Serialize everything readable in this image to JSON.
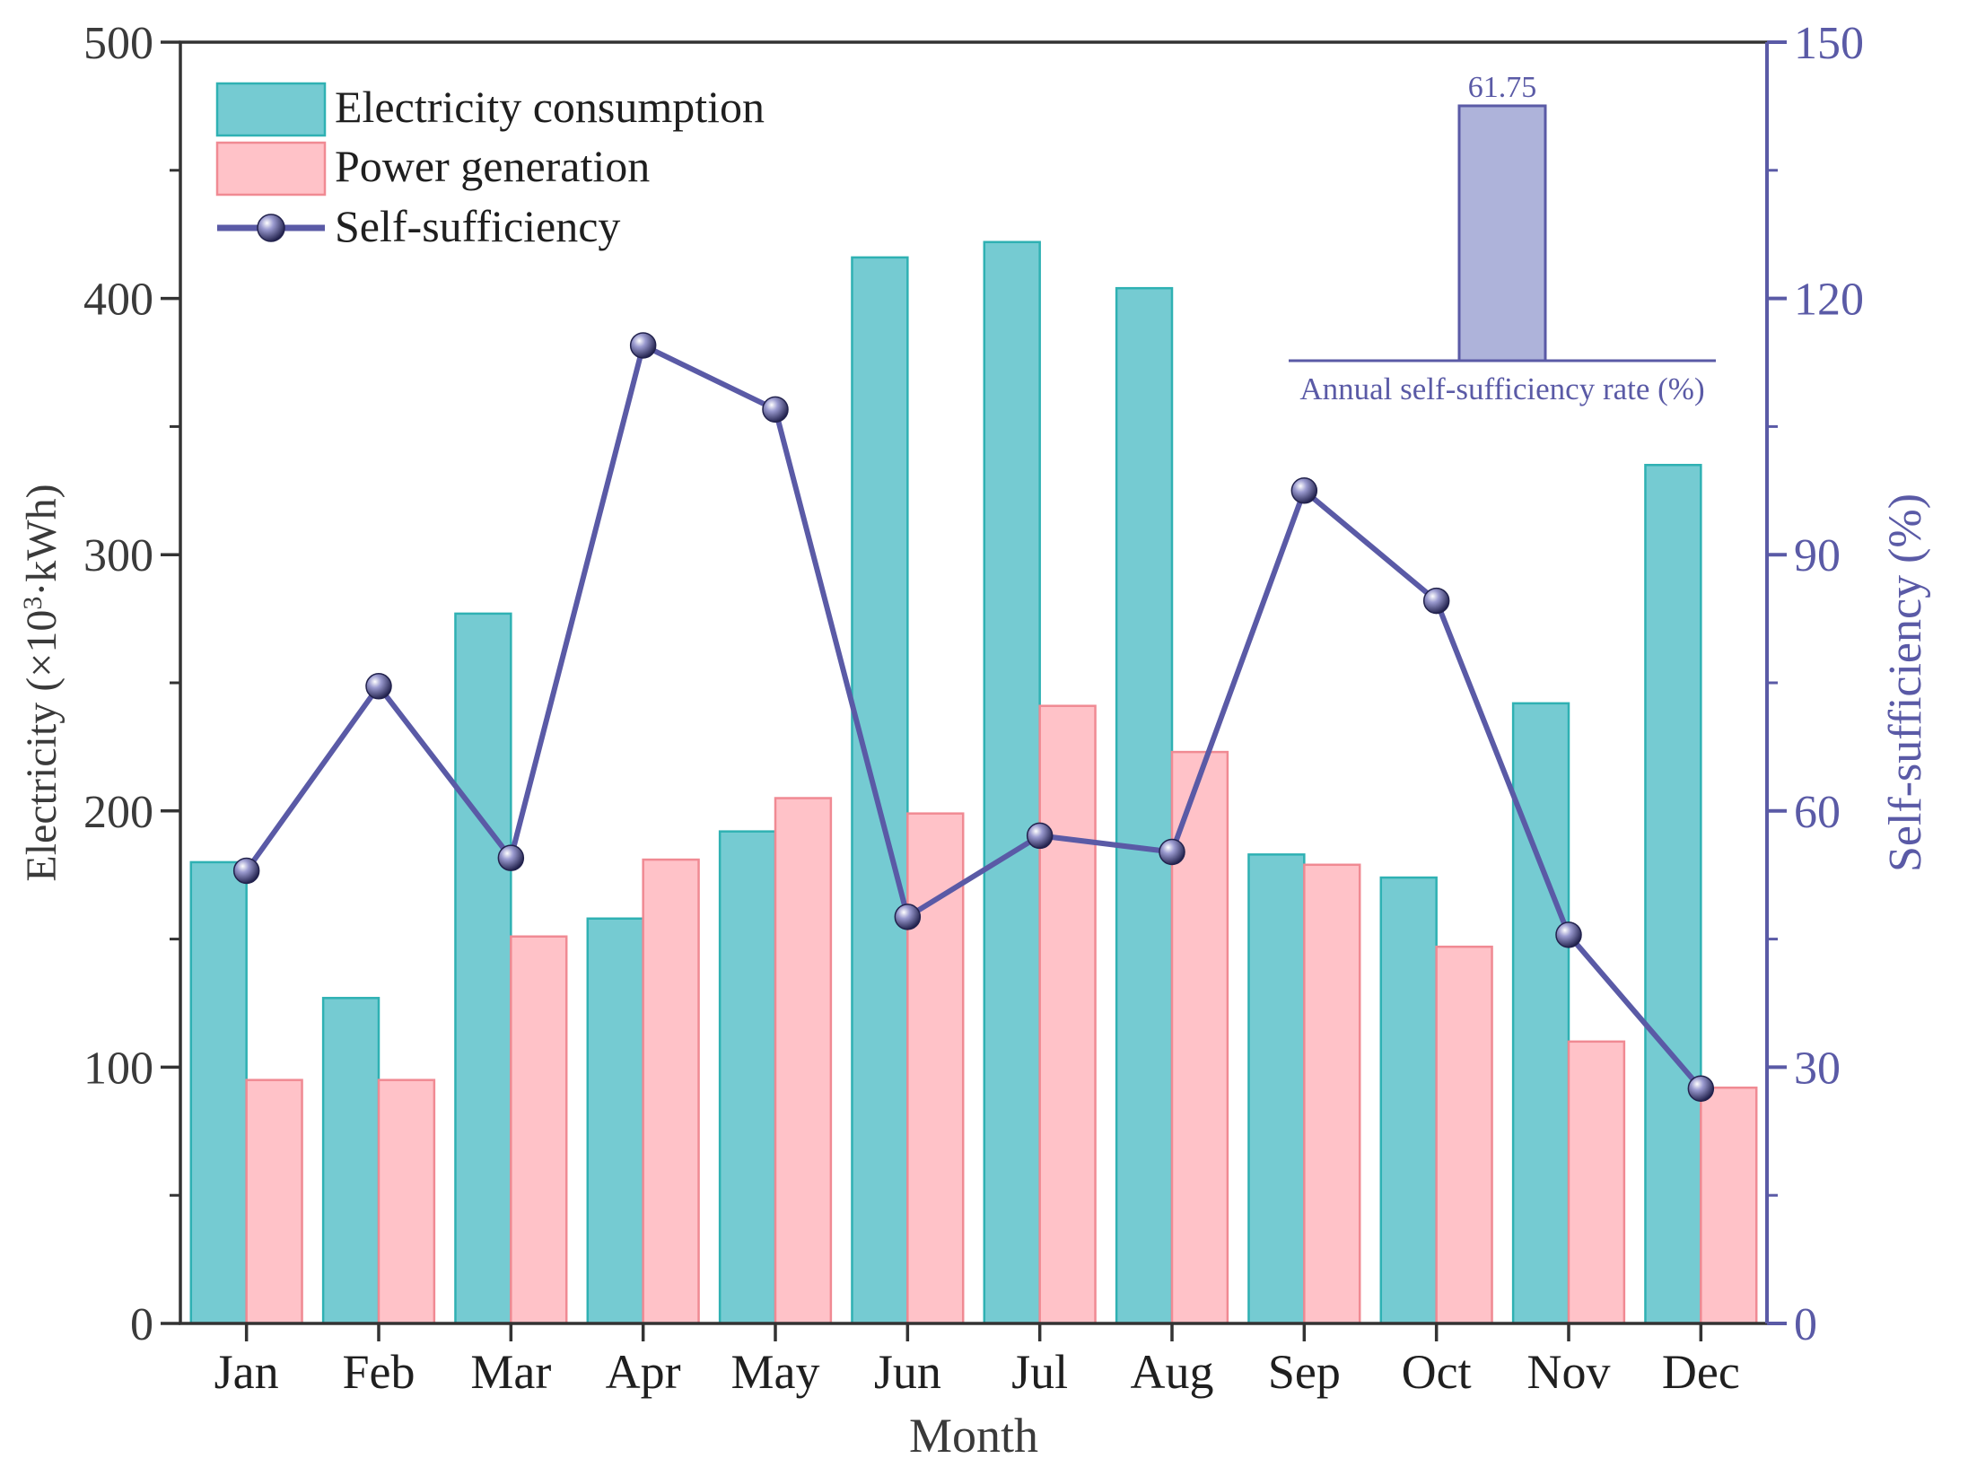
{
  "chart_data": {
    "type": "bar",
    "categories": [
      "Jan",
      "Feb",
      "Mar",
      "Apr",
      "May",
      "Jun",
      "Jul",
      "Aug",
      "Sep",
      "Oct",
      "Nov",
      "Dec"
    ],
    "series": [
      {
        "name": "Electricity consumption",
        "axis": "left",
        "type": "bar",
        "values": [
          180,
          127,
          277,
          158,
          192,
          416,
          422,
          404,
          183,
          174,
          242,
          335
        ]
      },
      {
        "name": "Power generation",
        "axis": "left",
        "type": "bar",
        "values": [
          95,
          95,
          151,
          181,
          205,
          199,
          241,
          223,
          179,
          147,
          110,
          92
        ]
      },
      {
        "name": "Self-sufficiency",
        "axis": "right",
        "type": "line",
        "values": [
          53,
          74.6,
          54.5,
          114.5,
          107,
          47.6,
          57.1,
          55.2,
          97.5,
          84.6,
          45.5,
          27.5
        ]
      }
    ],
    "xlabel": "Month",
    "ylabel": "Electricity (×10³·kWh)",
    "ylabel_parts": {
      "pre": "Electricity (×10",
      "sup": "3",
      "post": "·kWh)"
    },
    "y2label": "Self-sufficiency (%)",
    "ylim": [
      0,
      500
    ],
    "y2lim": [
      0,
      150
    ],
    "yticks": [
      "0",
      "100",
      "200",
      "300",
      "400",
      "500"
    ],
    "y2ticks": [
      "0",
      "30",
      "60",
      "90",
      "120",
      "150"
    ],
    "legend_position": "top-left",
    "inset": {
      "label": "Annual self-sufficiency rate (%)",
      "value": 61.75,
      "value_label": "61.75"
    },
    "colors": {
      "consumption_fill": "#75CBD2",
      "consumption_edge": "#2FB1B3",
      "generation_fill": "#FFC2C8",
      "generation_edge": "#F08A93",
      "line": "#5A5AA6",
      "marker": "#2E2E66",
      "right_axis": "#5A5AA6",
      "inset_fill": "#AEB3DA",
      "axis": "#333333",
      "text": "#3A3A3A"
    }
  }
}
